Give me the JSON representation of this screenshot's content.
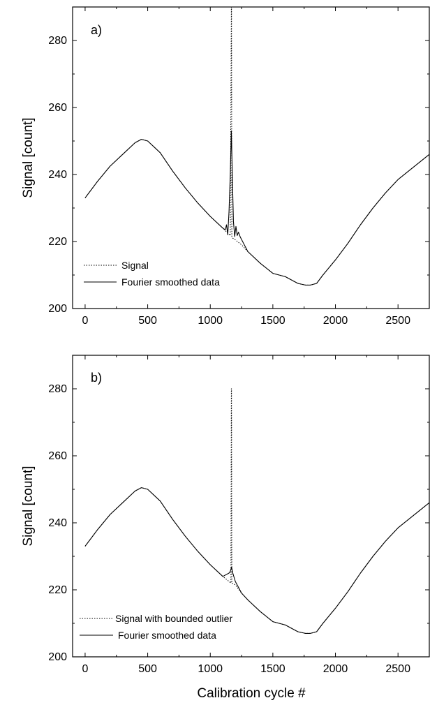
{
  "chart_data": [
    {
      "type": "line",
      "panel_label": "a)",
      "xlabel": "",
      "ylabel": "Signal [count]",
      "xlim": [
        -100,
        2750
      ],
      "ylim": [
        200,
        290
      ],
      "xticks": [
        0,
        500,
        1000,
        1500,
        2000,
        2500
      ],
      "yticks": [
        200,
        220,
        240,
        260,
        280
      ],
      "grid": false,
      "legend_position": "bottom-left",
      "series": [
        {
          "name": "Signal",
          "style": "dotted",
          "x": [
            0,
            100,
            200,
            300,
            400,
            450,
            500,
            600,
            700,
            800,
            900,
            1000,
            1100,
            1140,
            1160,
            1168,
            1170,
            1172,
            1180,
            1200,
            1250,
            1300,
            1400,
            1500,
            1600,
            1700,
            1760,
            1800,
            1850,
            1900,
            2000,
            2100,
            2200,
            2300,
            2400,
            2500,
            2600,
            2700,
            2750
          ],
          "y": [
            233,
            238,
            242.5,
            246,
            249.5,
            250.5,
            250,
            246.5,
            241,
            236,
            231.5,
            227.5,
            224,
            222.5,
            221.8,
            290,
            290,
            221.5,
            221,
            220.5,
            219,
            217,
            213.5,
            210.5,
            209.5,
            207.5,
            207,
            207,
            207.5,
            210,
            214.5,
            219.5,
            225,
            230,
            234.5,
            238.5,
            241.5,
            244.5,
            246
          ]
        },
        {
          "name": "Fourier smoothed data",
          "style": "solid",
          "x": [
            0,
            100,
            200,
            300,
            400,
            450,
            500,
            600,
            700,
            800,
            900,
            1000,
            1100,
            1120,
            1130,
            1140,
            1150,
            1160,
            1168,
            1176,
            1185,
            1195,
            1205,
            1215,
            1225,
            1240,
            1300,
            1400,
            1500,
            1600,
            1700,
            1760,
            1800,
            1850,
            1900,
            2000,
            2100,
            2200,
            2300,
            2400,
            2500,
            2600,
            2700,
            2750
          ],
          "y": [
            233,
            238,
            242.5,
            246,
            249.5,
            250.5,
            250,
            246.5,
            241,
            236,
            231.5,
            227.5,
            224,
            223.5,
            225,
            222,
            229,
            240,
            253,
            240,
            226,
            221.5,
            224.5,
            221.8,
            222.8,
            221.3,
            217,
            213.5,
            210.5,
            209.5,
            207.5,
            207,
            207,
            207.5,
            210,
            214.5,
            219.5,
            225,
            230,
            234.5,
            238.5,
            241.5,
            244.5,
            246
          ]
        }
      ]
    },
    {
      "type": "line",
      "panel_label": "b)",
      "xlabel": "Calibration cycle #",
      "ylabel": "Signal [count]",
      "xlim": [
        -100,
        2750
      ],
      "ylim": [
        200,
        290
      ],
      "xticks": [
        0,
        500,
        1000,
        1500,
        2000,
        2500
      ],
      "yticks": [
        200,
        220,
        240,
        260,
        280
      ],
      "grid": false,
      "legend_position": "bottom-left",
      "series": [
        {
          "name": "Signal with bounded outlier",
          "style": "dotted",
          "x": [
            0,
            100,
            200,
            300,
            400,
            450,
            500,
            600,
            700,
            800,
            900,
            1000,
            1100,
            1150,
            1165,
            1168,
            1170,
            1172,
            1175,
            1200,
            1250,
            1300,
            1400,
            1500,
            1600,
            1700,
            1760,
            1800,
            1850,
            1900,
            2000,
            2100,
            2200,
            2300,
            2400,
            2500,
            2600,
            2700,
            2750
          ],
          "y": [
            233,
            238,
            242.5,
            246,
            249.5,
            250.5,
            250,
            246.5,
            241,
            236,
            231.5,
            227.5,
            224,
            222.5,
            222,
            280,
            280,
            222,
            222,
            221.5,
            219,
            217,
            213.5,
            210.5,
            209.5,
            207.5,
            207,
            207,
            207.5,
            210,
            214.5,
            219.5,
            225,
            230,
            234.5,
            238.5,
            241.5,
            244.5,
            246
          ]
        },
        {
          "name": "Fourier smoothed data",
          "style": "solid",
          "x": [
            0,
            100,
            200,
            300,
            400,
            450,
            500,
            600,
            700,
            800,
            900,
            1000,
            1100,
            1150,
            1160,
            1170,
            1180,
            1200,
            1250,
            1300,
            1400,
            1500,
            1600,
            1700,
            1760,
            1800,
            1850,
            1900,
            2000,
            2100,
            2200,
            2300,
            2400,
            2500,
            2600,
            2700,
            2750
          ],
          "y": [
            233,
            238,
            242.5,
            246,
            249.5,
            250.5,
            250,
            246.5,
            241,
            236,
            231.5,
            227.5,
            224,
            225,
            225.5,
            226.8,
            225,
            222.5,
            219,
            217,
            213.5,
            210.5,
            209.5,
            207.5,
            207,
            207,
            207.5,
            210,
            214.5,
            219.5,
            225,
            230,
            234.5,
            238.5,
            241.5,
            244.5,
            246
          ]
        }
      ]
    }
  ]
}
